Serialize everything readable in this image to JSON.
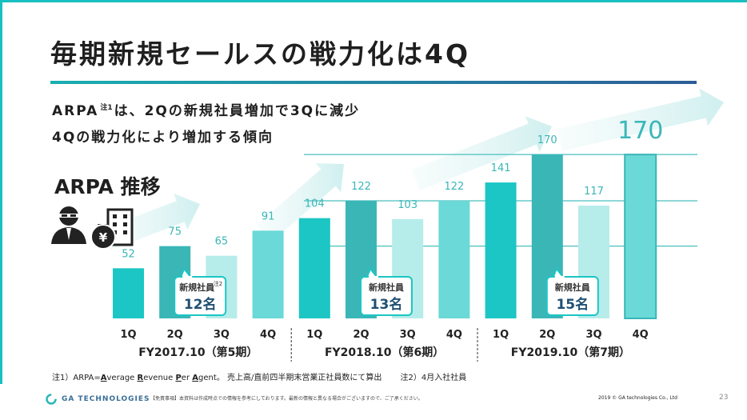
{
  "title": "毎期新規セールスの戦力化は4Q",
  "subtitle": {
    "line1_a": "ARPA",
    "line1_note": "注1",
    "line1_b": "は、2Qの新規社員増加で3Qに減少",
    "line2": "4Qの戦力化により増加する傾向"
  },
  "section_title": "ARPA 推移",
  "icons": [
    "person-icon",
    "money-bag-icon",
    "building-icon"
  ],
  "colors": {
    "accent": "#1bc6c4",
    "dark_teal": "#3ab6b7",
    "mid_teal": "#6ad9d7",
    "light_teal": "#b6ecea",
    "title_rule_end": "#2d5d96"
  },
  "chart_data": {
    "type": "bar",
    "x": [
      "1Q",
      "2Q",
      "3Q",
      "4Q",
      "1Q",
      "2Q",
      "3Q",
      "4Q",
      "1Q",
      "2Q",
      "3Q",
      "4Q"
    ],
    "values": [
      52,
      75,
      65,
      91,
      104,
      122,
      103,
      122,
      141,
      170,
      117,
      170
    ],
    "highlight_value_label": "170",
    "groups": [
      "FY2017.10（第5期）",
      "FY2018.10（第6期）",
      "FY2019.10（第7期）"
    ],
    "reference_lines": [
      170,
      122,
      75
    ],
    "callouts": [
      {
        "label": "新規社員",
        "note": "注2",
        "value": "12名"
      },
      {
        "label": "新規社員",
        "note": "",
        "value": "13名"
      },
      {
        "label": "新規社員",
        "note": "",
        "value": "15名"
      }
    ]
  },
  "footnote": {
    "prefix": "注1）ARPA=",
    "w1a": "A",
    "w1b": "verage ",
    "w2a": "R",
    "w2b": "evenue ",
    "w3a": "P",
    "w3b": "er ",
    "w4a": "A",
    "w4b": "gent",
    "suffix": "。 売上高/直前四半期末営業正社員数にて算出　　 注2）4月入社社員"
  },
  "footer": {
    "logo_text": "GA TECHNOLOGIES",
    "disclaimer": "【免責事項】本資料は作成時点での情報を参考にしております。最新の情報と異なる場合がございますので、ご了承ください。",
    "copyright": "2019 © GA technologies Co., Ltd",
    "page": "23"
  }
}
